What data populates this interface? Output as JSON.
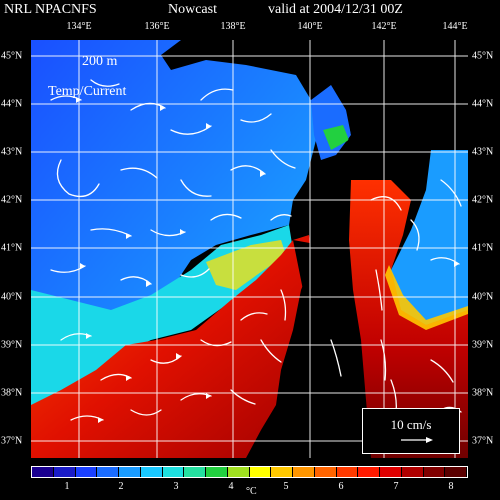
{
  "header": {
    "source": "NRL NPACNFS",
    "product": "Nowcast",
    "valid": "valid at 2004/12/31 00Z"
  },
  "map": {
    "depth_label": "200 m",
    "field_label": "Temp/Current",
    "speed_scale": "10 cm/s",
    "lon_labels": [
      "134°E",
      "136°E",
      "138°E",
      "140°E",
      "142°E",
      "144°E"
    ],
    "lat_labels": [
      "45°N",
      "44°N",
      "43°N",
      "42°N",
      "41°N",
      "40°N",
      "39°N",
      "38°N",
      "37°N"
    ]
  },
  "colorbar": {
    "unit": "°C",
    "tick_labels": [
      "1",
      "2",
      "3",
      "4",
      "5",
      "6",
      "7",
      "8"
    ],
    "colors": [
      "#1a0090",
      "#1a1cc8",
      "#1a40ff",
      "#1a6cff",
      "#1a9cff",
      "#19c8ff",
      "#1de0e0",
      "#24e0a0",
      "#22d040",
      "#a0e020",
      "#ffff00",
      "#ffc800",
      "#ff9600",
      "#ff6400",
      "#ff3a00",
      "#ff1a00",
      "#e00000",
      "#b00000",
      "#800000",
      "#5a0000"
    ]
  }
}
